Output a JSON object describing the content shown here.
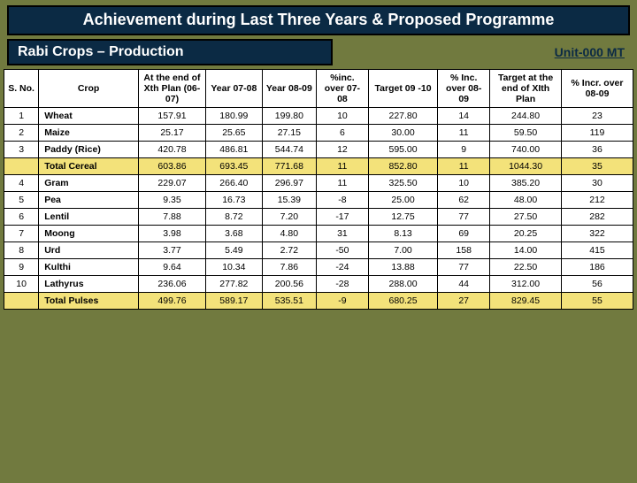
{
  "title": "Achievement during Last Three Years & Proposed Programme",
  "subhead": "Rabi Crops – Production",
  "unit": "Unit-000 MT",
  "columns": [
    "S. No.",
    "Crop",
    "At the end of Xth Plan (06-07)",
    "Year 07-08",
    "Year 08-09",
    "%inc. over 07-08",
    "Target 09 -10",
    "% Inc. over 08-09",
    "Target at the end of XIth Plan",
    "% Incr. over 08-09"
  ],
  "rows": [
    {
      "sno": "1",
      "crop": "Wheat",
      "xth": "157.91",
      "y07": "180.99",
      "y08": "199.80",
      "pi07": "10",
      "t09": "227.80",
      "pi08": "14",
      "txi": "244.80",
      "pi09": "23",
      "hl": false
    },
    {
      "sno": "2",
      "crop": "Maize",
      "xth": "25.17",
      "y07": "25.65",
      "y08": "27.15",
      "pi07": "6",
      "t09": "30.00",
      "pi08": "11",
      "txi": "59.50",
      "pi09": "119",
      "hl": false
    },
    {
      "sno": "3",
      "crop": "Paddy (Rice)",
      "xth": "420.78",
      "y07": "486.81",
      "y08": "544.74",
      "pi07": "12",
      "t09": "595.00",
      "pi08": "9",
      "txi": "740.00",
      "pi09": "36",
      "hl": false
    },
    {
      "sno": "",
      "crop": "Total Cereal",
      "xth": "603.86",
      "y07": "693.45",
      "y08": "771.68",
      "pi07": "11",
      "t09": "852.80",
      "pi08": "11",
      "txi": "1044.30",
      "pi09": "35",
      "hl": true
    },
    {
      "sno": "4",
      "crop": "Gram",
      "xth": "229.07",
      "y07": "266.40",
      "y08": "296.97",
      "pi07": "11",
      "t09": "325.50",
      "pi08": "10",
      "txi": "385.20",
      "pi09": "30",
      "hl": false
    },
    {
      "sno": "5",
      "crop": "Pea",
      "xth": "9.35",
      "y07": "16.73",
      "y08": "15.39",
      "pi07": "-8",
      "t09": "25.00",
      "pi08": "62",
      "txi": "48.00",
      "pi09": "212",
      "hl": false
    },
    {
      "sno": "6",
      "crop": "Lentil",
      "xth": "7.88",
      "y07": "8.72",
      "y08": "7.20",
      "pi07": "-17",
      "t09": "12.75",
      "pi08": "77",
      "txi": "27.50",
      "pi09": "282",
      "hl": false
    },
    {
      "sno": "7",
      "crop": "Moong",
      "xth": "3.98",
      "y07": "3.68",
      "y08": "4.80",
      "pi07": "31",
      "t09": "8.13",
      "pi08": "69",
      "txi": "20.25",
      "pi09": "322",
      "hl": false
    },
    {
      "sno": "8",
      "crop": "Urd",
      "xth": "3.77",
      "y07": "5.49",
      "y08": "2.72",
      "pi07": "-50",
      "t09": "7.00",
      "pi08": "158",
      "txi": "14.00",
      "pi09": "415",
      "hl": false
    },
    {
      "sno": "9",
      "crop": "Kulthi",
      "xth": "9.64",
      "y07": "10.34",
      "y08": "7.86",
      "pi07": "-24",
      "t09": "13.88",
      "pi08": "77",
      "txi": "22.50",
      "pi09": "186",
      "hl": false
    },
    {
      "sno": "10",
      "crop": "Lathyrus",
      "xth": "236.06",
      "y07": "277.82",
      "y08": "200.56",
      "pi07": "-28",
      "t09": "288.00",
      "pi08": "44",
      "txi": "312.00",
      "pi09": "56",
      "hl": false
    },
    {
      "sno": "",
      "crop": "Total Pulses",
      "xth": "499.76",
      "y07": "589.17",
      "y08": "535.51",
      "pi07": "-9",
      "t09": "680.25",
      "pi08": "27",
      "txi": "829.45",
      "pi09": "55",
      "hl": true
    }
  ],
  "styling": {
    "page_bg": "#717a3f",
    "header_bg": "#0b2a44",
    "header_fg": "#ffffff",
    "highlight_bg": "#f3e27a",
    "table_bg": "#ffffff",
    "border_color": "#000000",
    "title_fontsize": 18,
    "subhead_fontsize": 16,
    "unit_fontsize": 14,
    "cell_fontsize": 10.5
  }
}
